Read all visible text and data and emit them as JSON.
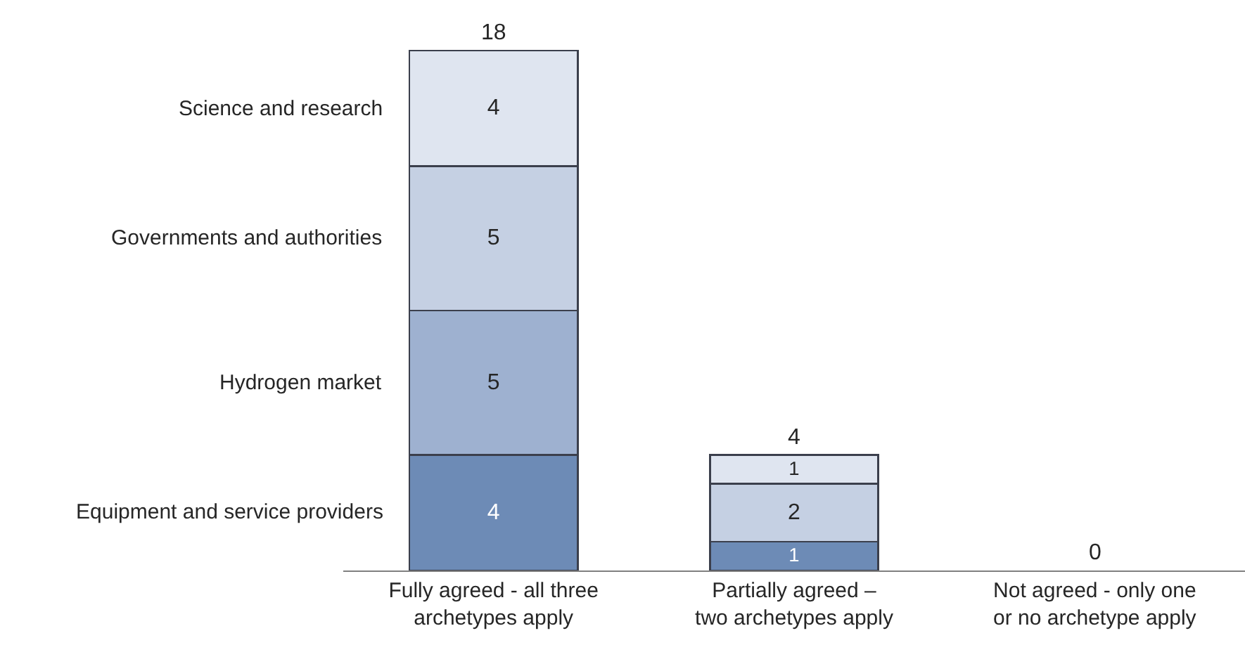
{
  "chart_data": {
    "type": "bar",
    "stacked": true,
    "categories": [
      "Fully agreed - all three\narchetypes apply",
      "Partially agreed –\ntwo archetypes apply",
      "Not agreed - only one\nor no archetype apply"
    ],
    "series": [
      {
        "name": "Equipment and service providers",
        "color": "#6d8bb6",
        "values": [
          4,
          1,
          null
        ],
        "value_labels": [
          "4",
          "1",
          null
        ]
      },
      {
        "name": "Hydrogen market",
        "color": "#9eb1d0",
        "values": [
          5,
          null,
          null
        ],
        "value_labels": [
          "5",
          null,
          null
        ]
      },
      {
        "name": "Governments and authorities",
        "color": "#c5d0e3",
        "values": [
          5,
          2,
          null
        ],
        "value_labels": [
          "5",
          "2",
          null
        ]
      },
      {
        "name": "Science and research",
        "color": "#dfe5f0",
        "values": [
          4,
          1,
          null
        ],
        "value_labels": [
          "4",
          "1",
          null
        ]
      }
    ],
    "totals": [
      "18",
      "4",
      "0"
    ],
    "legend": false
  }
}
